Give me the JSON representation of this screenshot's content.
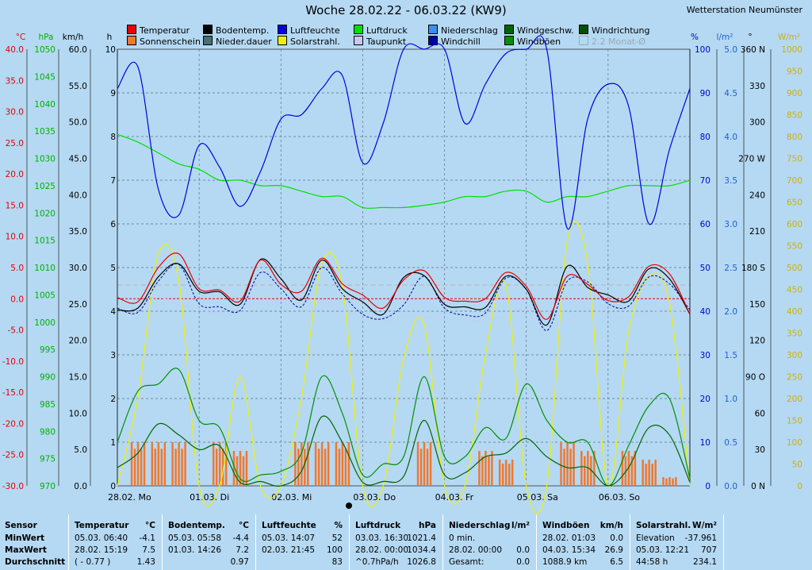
{
  "title": "Woche 28.02.22 - 06.03.22 (KW9)",
  "station": "Wetterstation Neumünster",
  "legend": [
    {
      "label": "Temperatur",
      "color": "#e80000",
      "enabled": true
    },
    {
      "label": "Bodentemp.",
      "color": "#000000",
      "enabled": true
    },
    {
      "label": "Luftfeuchte",
      "color": "#0000e0",
      "enabled": true
    },
    {
      "label": "Luftdruck",
      "color": "#00e000",
      "enabled": true
    },
    {
      "label": "Niederschlag",
      "color": "#3b8ef0",
      "enabled": true
    },
    {
      "label": "Windgeschw.",
      "color": "#006400",
      "enabled": true
    },
    {
      "label": "Windrichtung",
      "color": "#005000",
      "enabled": true
    },
    {
      "label": "Sonnenschein",
      "color": "#f07830",
      "enabled": true
    },
    {
      "label": "Nieder.dauer",
      "color": "#487070",
      "enabled": true
    },
    {
      "label": "Solarstrahl.",
      "color": "#f0f000",
      "enabled": true
    },
    {
      "label": "Taupunkt",
      "color": "#c8c8f0",
      "enabled": true
    },
    {
      "label": "Windchill",
      "color": "#0000a0",
      "enabled": true
    },
    {
      "label": "Windböen",
      "color": "#009000",
      "enabled": true
    },
    {
      "label": "2.2 Monat-Ø",
      "color": "#9aa8b4",
      "enabled": false
    }
  ],
  "axes_units": {
    "temp": "°C",
    "pressure": "hPa",
    "wind": "km/h",
    "sun": "h",
    "humidity": "%",
    "rain": "l/m²",
    "direction": "°",
    "solar": "W/m²"
  },
  "axes": {
    "temp": [
      "40.0",
      "35.0",
      "30.0",
      "25.0",
      "20.0",
      "15.0",
      "10.0",
      "5.0",
      "0.0",
      "-5.0",
      "-10.0",
      "-15.0",
      "-20.0",
      "-25.0",
      "-30.0"
    ],
    "pressure": [
      "1050",
      "1045",
      "1040",
      "1035",
      "1030",
      "1025",
      "1020",
      "1015",
      "1010",
      "1005",
      "1000",
      "995",
      "990",
      "985",
      "980",
      "975",
      "970"
    ],
    "wind": [
      "60.0",
      "55.0",
      "50.0",
      "45.0",
      "40.0",
      "35.0",
      "30.0",
      "25.0",
      "20.0",
      "15.0",
      "10.0",
      "5.0",
      "0.0"
    ],
    "sun": [
      "10",
      "9",
      "8",
      "7",
      "6",
      "5",
      "4",
      "3",
      "2",
      "1",
      "0"
    ],
    "humidity": [
      "100",
      "90",
      "80",
      "70",
      "60",
      "50",
      "40",
      "30",
      "20",
      "10",
      "0"
    ],
    "rain": [
      "5.0",
      "4.5",
      "4.0",
      "3.5",
      "3.0",
      "2.5",
      "2.0",
      "1.5",
      "1.0",
      "0.5",
      "0.0"
    ],
    "direction": [
      "360 N",
      "330",
      "300",
      "270 W",
      "240",
      "210",
      "180 S",
      "150",
      "120",
      "90 O",
      "60",
      "30",
      "0 N"
    ],
    "solar": [
      "1000",
      "950",
      "900",
      "850",
      "800",
      "750",
      "700",
      "650",
      "600",
      "550",
      "500",
      "450",
      "400",
      "350",
      "300",
      "250",
      "200",
      "150",
      "100",
      "50",
      "0"
    ]
  },
  "chart_data": {
    "type": "line",
    "title": "Woche 28.02.22 - 06.03.22 (KW9)",
    "x_categories": [
      "28.02. Mo",
      "01.03. Di",
      "02.03. Mi",
      "03.03. Do",
      "04.03. Fr",
      "05.03. Sa",
      "06.03. So"
    ],
    "x_hours": [
      0,
      6,
      12,
      18,
      24,
      30,
      36,
      42,
      48,
      54,
      60,
      66,
      72,
      78,
      84,
      90,
      96,
      102,
      108,
      114,
      120,
      126,
      132,
      138,
      144,
      150,
      156,
      162,
      168
    ],
    "series": [
      {
        "name": "Temperatur",
        "axis": "temp",
        "color": "#e80000",
        "values": [
          0.2,
          -0.5,
          5,
          7.2,
          1.6,
          1.4,
          -0.4,
          6.2,
          2.3,
          1.2,
          6.5,
          2.4,
          0.6,
          -1.5,
          3.0,
          4.5,
          0.2,
          -0.4,
          0,
          4.2,
          2.0,
          -3.3,
          3.6,
          2.3,
          -0.3,
          0.3,
          5.2,
          4,
          -2.5
        ]
      },
      {
        "name": "Bodentemp.",
        "axis": "temp",
        "color": "#000000",
        "values": [
          -1.8,
          -1.5,
          3.5,
          5.6,
          1.2,
          1.1,
          -0.9,
          6.3,
          3.2,
          -0.2,
          6.2,
          1.6,
          -0.5,
          -2.5,
          3.4,
          3.7,
          -0.9,
          -1.3,
          -1.4,
          3.6,
          1.5,
          -4.2,
          5.2,
          1.8,
          0.6,
          -0.4,
          4.8,
          3.2,
          -2.5
        ]
      },
      {
        "name": "Windchill",
        "axis": "temp",
        "color": "#0000a0",
        "values": [
          -1.5,
          -2.2,
          2.8,
          5.5,
          -0.8,
          -1.3,
          -1.9,
          4.2,
          1.6,
          -1.3,
          5,
          0.8,
          -2.5,
          -3.2,
          -1.0,
          3.6,
          -1.5,
          -2.6,
          -2.3,
          3.3,
          1.5,
          -5.1,
          2.8,
          2.7,
          -0.8,
          -1.2,
          3.5,
          2.4,
          -1.8
        ]
      },
      {
        "name": "Taupunkt",
        "axis": "temp",
        "color": "#c8c8f0",
        "values": [
          -1.2,
          -1.5,
          0.2,
          -1,
          -1.5,
          -2.5,
          -2,
          -0.2,
          -0.5,
          -2.2,
          -1.2,
          -1.6,
          -3,
          -3.6,
          -2.8,
          -3,
          -3.3,
          -3.4,
          -3.4,
          -2.8,
          -1.6,
          -3.8,
          -3.6,
          -1.6,
          -2.6,
          -3,
          -2.2,
          -1.8,
          -2.4
        ]
      },
      {
        "name": "Luftfeuchte",
        "axis": "humidity",
        "color": "#0000e0",
        "values": [
          91,
          96,
          68,
          62,
          78,
          73,
          64,
          72,
          84,
          85,
          91,
          94,
          74,
          83,
          100,
          100,
          100,
          83,
          92,
          99,
          100,
          100,
          59,
          84,
          92,
          87,
          60,
          77,
          91
        ]
      },
      {
        "name": "Luftdruck",
        "axis": "pressure",
        "color": "#00e000",
        "values": [
          1034.4,
          1033,
          1031,
          1029,
          1028,
          1026,
          1026,
          1025,
          1025,
          1024,
          1023,
          1023,
          1021,
          1021,
          1021,
          1021.4,
          1022,
          1023,
          1023,
          1024,
          1024,
          1022,
          1023,
          1023,
          1024,
          1025,
          1025,
          1025,
          1026
        ]
      },
      {
        "name": "Windgeschw.",
        "axis": "wind",
        "color": "#006400",
        "values": [
          2.5,
          4.5,
          8.5,
          7,
          5,
          5.5,
          0.5,
          0.6,
          0,
          2,
          9.5,
          6,
          0.5,
          0.6,
          1.3,
          9,
          1.5,
          1.8,
          4,
          4.5,
          6.5,
          4.0,
          2.5,
          2.5,
          0,
          2.5,
          8,
          7,
          0.5
        ]
      },
      {
        "name": "Windböen",
        "axis": "wind",
        "color": "#009000",
        "values": [
          6,
          13,
          14,
          16,
          9,
          8,
          1,
          1.5,
          2,
          4.5,
          15,
          10,
          1.5,
          3,
          4,
          15,
          4,
          4,
          8,
          6.5,
          14,
          9,
          6,
          6,
          0,
          5.5,
          11,
          12,
          1
        ]
      },
      {
        "name": "Solarstrahl.",
        "axis": "solar",
        "color": "#f0f000",
        "values": [
          0,
          200,
          530,
          470,
          0,
          0,
          250,
          0,
          0,
          200,
          510,
          460,
          0,
          0,
          290,
          370,
          0,
          0,
          300,
          460,
          0,
          0,
          560,
          510,
          0,
          350,
          480,
          420,
          0
        ]
      },
      {
        "name": "Sonnenschein",
        "axis": "sun",
        "color": "#f07830",
        "type": "bar",
        "values": [
          0,
          1,
          1,
          1,
          0,
          1,
          0.8,
          0,
          0,
          1,
          1,
          1,
          0,
          0,
          0,
          1,
          0,
          0,
          0.8,
          0.6,
          0,
          0,
          1,
          0.8,
          0,
          0.8,
          0.6,
          0.2,
          0
        ]
      }
    ],
    "x_range": [
      0,
      168
    ],
    "grid": true,
    "legend_position": "top"
  },
  "stats": {
    "sensor": {
      "title": "Sensor",
      "rows": [
        "MinWert",
        "MaxWert",
        "Durchschnitt"
      ]
    },
    "tables": [
      {
        "title": "Temperatur",
        "unit": "°C",
        "rows": [
          [
            "05.03.  06:40",
            "-4.1"
          ],
          [
            "28.02.  15:19",
            "7.5"
          ],
          [
            "( - 0.77 )",
            "1.43"
          ]
        ]
      },
      {
        "title": "Bodentemp.",
        "unit": "°C",
        "rows": [
          [
            "05.03.  05:58",
            "-4.4"
          ],
          [
            "01.03.  14:26",
            "7.2"
          ],
          [
            "",
            "0.97"
          ]
        ]
      },
      {
        "title": "Luftfeuchte",
        "unit": "%",
        "rows": [
          [
            "05.03.  14:07",
            "52"
          ],
          [
            "02.03.  21:45",
            "100"
          ],
          [
            "",
            "83"
          ]
        ]
      },
      {
        "title": "Luftdruck",
        "unit": "hPa",
        "rows": [
          [
            "03.03.  16:30",
            "1021.4"
          ],
          [
            "28.02.  00:00",
            "1034.4"
          ],
          [
            "^0.7hPa/h",
            "1026.8"
          ]
        ]
      },
      {
        "title": "Niederschlag",
        "unit": "l/m²",
        "rows": [
          [
            "0 min.",
            ""
          ],
          [
            "28.02.  00:00",
            "0.0"
          ],
          [
            "Gesamt:",
            "0.0"
          ]
        ]
      },
      {
        "title": "Windböen",
        "unit": "km/h",
        "rows": [
          [
            "28.02.  01:03",
            "0.0"
          ],
          [
            "04.03.  15:34",
            "26.9"
          ],
          [
            "1088.9 km",
            "6.5"
          ]
        ]
      },
      {
        "title": "Solarstrahl.",
        "unit": "W/m²",
        "rows": [
          [
            "Elevation",
            "-37.961"
          ],
          [
            "05.03.  12:21",
            "707"
          ],
          [
            "44:58 h",
            "234.1"
          ]
        ]
      }
    ]
  }
}
